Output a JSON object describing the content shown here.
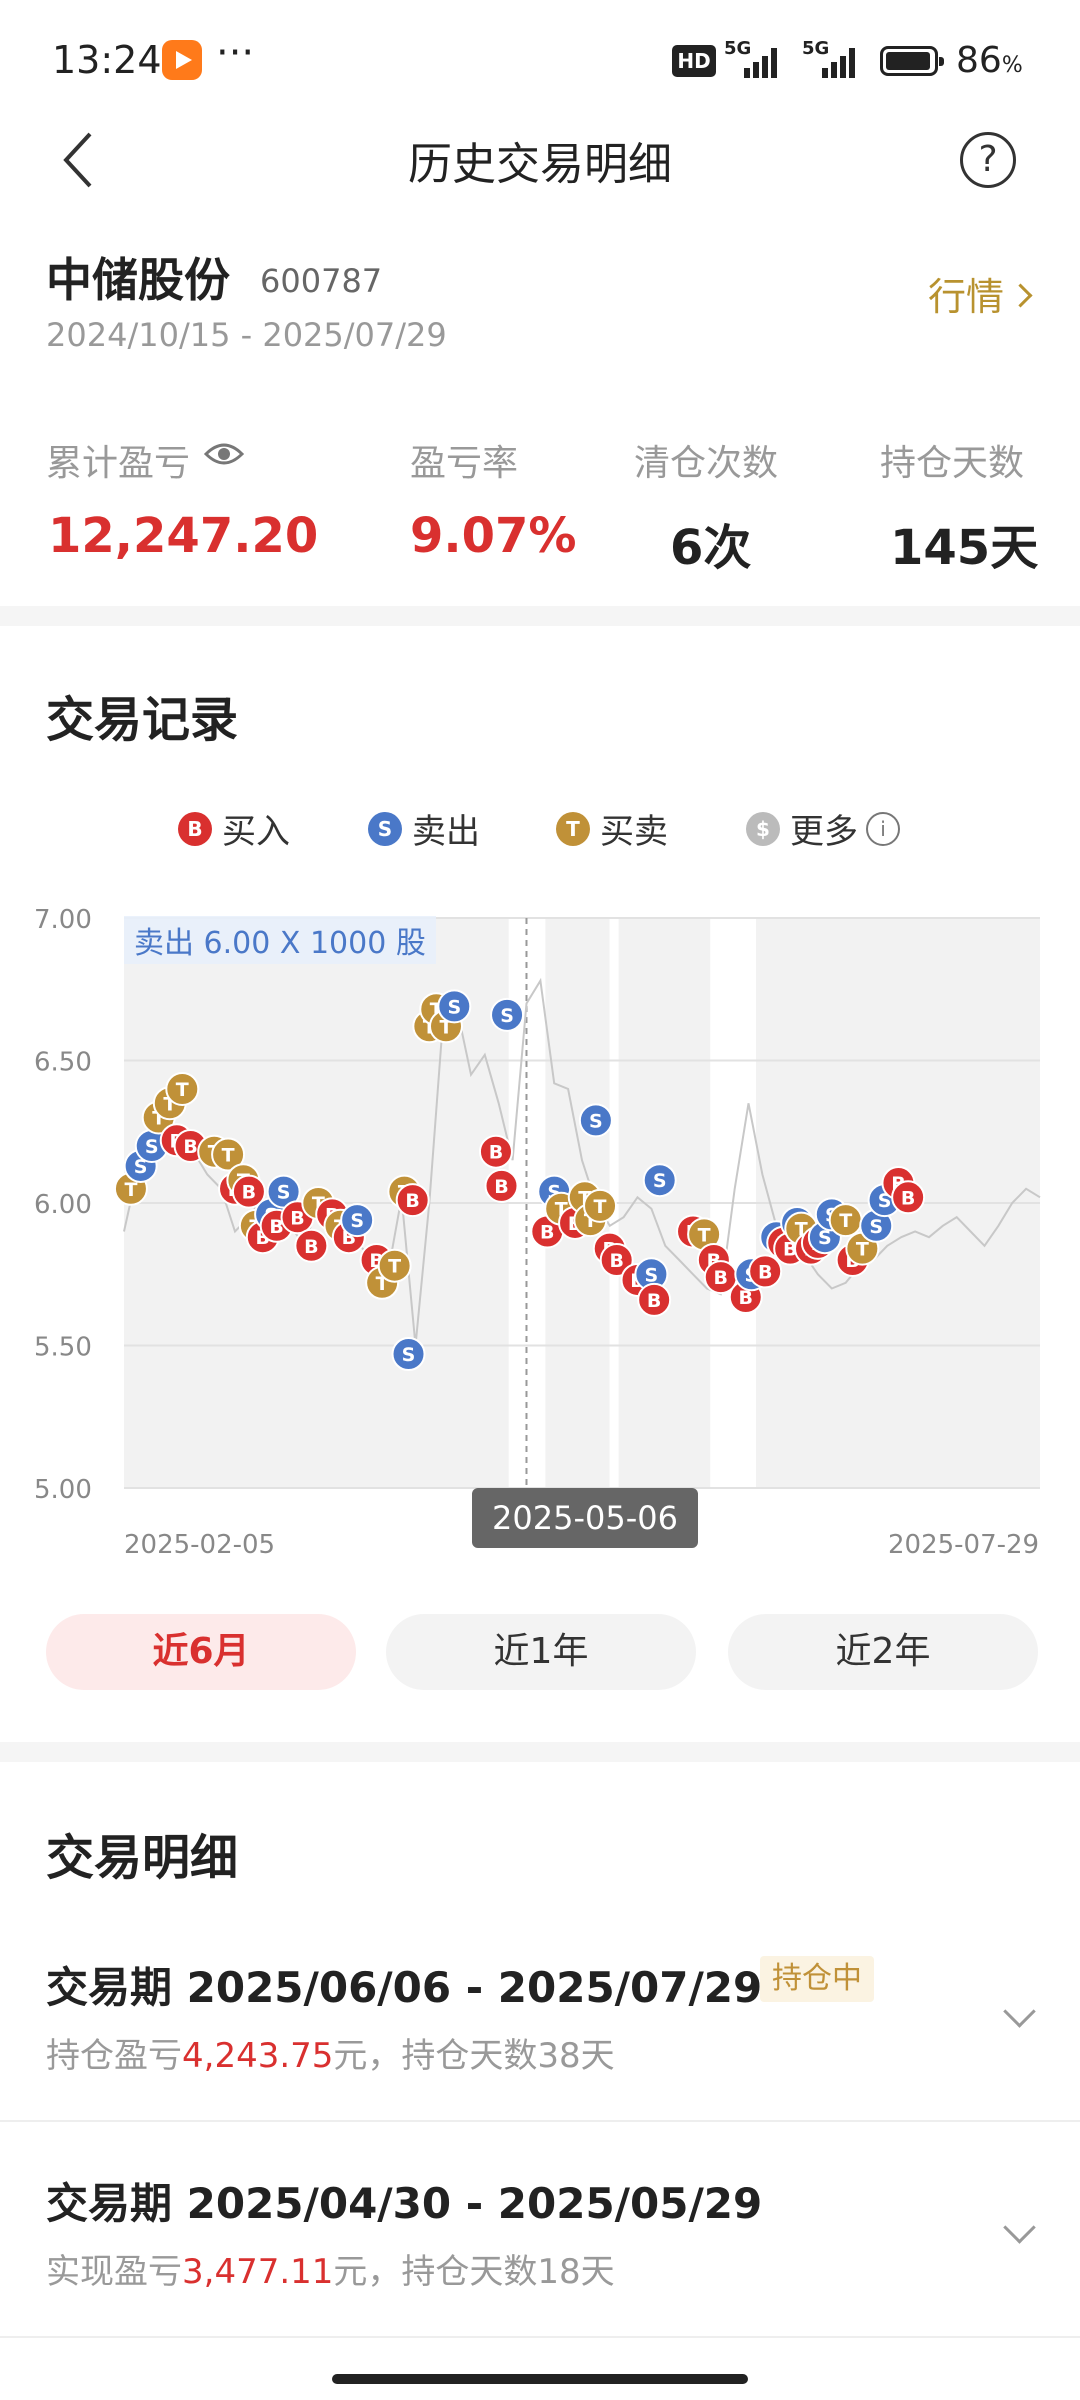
{
  "status_bar": {
    "time": "13:24",
    "more": "···",
    "hd": "HD",
    "signal1": "5G",
    "signal2": "5G",
    "battery": "86",
    "battery_unit": "%"
  },
  "header": {
    "title": "历史交易明细",
    "help": "?"
  },
  "stock": {
    "name": "中储股份",
    "code": "600787",
    "date_range": "2024/10/15 - 2025/07/29",
    "quote_link": "行情"
  },
  "stats": [
    {
      "label": "累计盈亏",
      "value": "12,247.20",
      "color": "#d9302f"
    },
    {
      "label": "盈亏率",
      "value": "9.07%",
      "color": "#d9302f"
    },
    {
      "label": "清仓次数",
      "value": "6次",
      "color": "#222222"
    },
    {
      "label": "持仓天数",
      "value": "145天",
      "color": "#222222"
    }
  ],
  "trade_records": {
    "title": "交易记录",
    "legend": [
      {
        "icon": "B",
        "label": "买入",
        "color": "#d9302f"
      },
      {
        "icon": "S",
        "label": "卖出",
        "color": "#4a78c8"
      },
      {
        "icon": "T",
        "label": "买卖",
        "color": "#c09138"
      },
      {
        "icon": "$",
        "label": "更多",
        "color": "#bbbbbb"
      }
    ],
    "tooltip_trade": "卖出 6.00 X 1000 股",
    "tooltip_date": "2025-05-06",
    "x_start": "2025-02-05",
    "x_end": "2025-07-29"
  },
  "chart_data": {
    "type": "line",
    "ylim": [
      5.0,
      7.0
    ],
    "y_ticks": [
      "7.00",
      "6.50",
      "6.00",
      "5.50",
      "5.00"
    ],
    "x_range": [
      "2025-02-05",
      "2025-07-29"
    ],
    "price": [
      5.9,
      6.12,
      6.3,
      6.35,
      6.2,
      6.18,
      6.1,
      6.05,
      5.9,
      5.95,
      6.02,
      5.9,
      5.92,
      5.85,
      6.0,
      5.95,
      5.92,
      5.85,
      5.8,
      5.75,
      6.02,
      5.5,
      6.0,
      6.65,
      6.68,
      6.45,
      6.52,
      6.35,
      6.15,
      6.7,
      6.78,
      6.42,
      6.4,
      6.15,
      6.0,
      5.92,
      5.95,
      6.02,
      5.98,
      5.85,
      5.8,
      5.75,
      5.7,
      5.68,
      6.05,
      6.35,
      6.1,
      5.92,
      5.88,
      5.82,
      5.75,
      5.7,
      5.72,
      5.78,
      5.8,
      5.85,
      5.88,
      5.9,
      5.88,
      5.92,
      5.95,
      5.9,
      5.85,
      5.92,
      6.0,
      6.05,
      6.02
    ],
    "markers": [
      {
        "t": "T",
        "i": 0.5,
        "v": 6.05
      },
      {
        "t": "S",
        "i": 1.2,
        "v": 6.13
      },
      {
        "t": "S",
        "i": 2.0,
        "v": 6.2
      },
      {
        "t": "T",
        "i": 2.5,
        "v": 6.3
      },
      {
        "t": "T",
        "i": 3.3,
        "v": 6.35
      },
      {
        "t": "T",
        "i": 4.2,
        "v": 6.4
      },
      {
        "t": "B",
        "i": 3.8,
        "v": 6.22
      },
      {
        "t": "B",
        "i": 4.8,
        "v": 6.2
      },
      {
        "t": "T",
        "i": 6.5,
        "v": 6.18
      },
      {
        "t": "T",
        "i": 7.5,
        "v": 6.17
      },
      {
        "t": "B",
        "i": 8.0,
        "v": 6.05
      },
      {
        "t": "T",
        "i": 8.6,
        "v": 6.08
      },
      {
        "t": "B",
        "i": 9.0,
        "v": 6.04
      },
      {
        "t": "T",
        "i": 9.5,
        "v": 5.92
      },
      {
        "t": "B",
        "i": 10.0,
        "v": 5.88
      },
      {
        "t": "S",
        "i": 10.6,
        "v": 5.96
      },
      {
        "t": "B",
        "i": 11.0,
        "v": 5.92
      },
      {
        "t": "S",
        "i": 11.5,
        "v": 6.04
      },
      {
        "t": "B",
        "i": 12.5,
        "v": 5.95
      },
      {
        "t": "B",
        "i": 13.5,
        "v": 5.85
      },
      {
        "t": "T",
        "i": 14.0,
        "v": 6.0
      },
      {
        "t": "B",
        "i": 15.0,
        "v": 5.96
      },
      {
        "t": "T",
        "i": 15.6,
        "v": 5.92
      },
      {
        "t": "B",
        "i": 16.2,
        "v": 5.88
      },
      {
        "t": "S",
        "i": 16.8,
        "v": 5.94
      },
      {
        "t": "B",
        "i": 18.2,
        "v": 5.8
      },
      {
        "t": "T",
        "i": 18.6,
        "v": 5.72
      },
      {
        "t": "T",
        "i": 19.5,
        "v": 5.78
      },
      {
        "t": "T",
        "i": 20.2,
        "v": 6.04
      },
      {
        "t": "B",
        "i": 20.8,
        "v": 6.01
      },
      {
        "t": "S",
        "i": 20.5,
        "v": 5.47
      },
      {
        "t": "T",
        "i": 22.0,
        "v": 6.62
      },
      {
        "t": "T",
        "i": 22.5,
        "v": 6.68
      },
      {
        "t": "T",
        "i": 23.2,
        "v": 6.62
      },
      {
        "t": "S",
        "i": 23.8,
        "v": 6.69
      },
      {
        "t": "B",
        "i": 26.8,
        "v": 6.18
      },
      {
        "t": "B",
        "i": 27.2,
        "v": 6.06
      },
      {
        "t": "S",
        "i": 27.6,
        "v": 6.66
      },
      {
        "t": "B",
        "i": 30.5,
        "v": 5.9
      },
      {
        "t": "S",
        "i": 31.0,
        "v": 6.04
      },
      {
        "t": "T",
        "i": 31.5,
        "v": 5.98
      },
      {
        "t": "B",
        "i": 32.5,
        "v": 5.93
      },
      {
        "t": "T",
        "i": 33.2,
        "v": 6.02
      },
      {
        "t": "T",
        "i": 33.6,
        "v": 5.94
      },
      {
        "t": "T",
        "i": 34.3,
        "v": 5.99
      },
      {
        "t": "S",
        "i": 34.0,
        "v": 6.29
      },
      {
        "t": "B",
        "i": 35.0,
        "v": 5.84
      },
      {
        "t": "B",
        "i": 35.5,
        "v": 5.8
      },
      {
        "t": "B",
        "i": 37.0,
        "v": 5.73
      },
      {
        "t": "S",
        "i": 38.0,
        "v": 5.75
      },
      {
        "t": "B",
        "i": 38.2,
        "v": 5.66
      },
      {
        "t": "S",
        "i": 38.6,
        "v": 6.08
      },
      {
        "t": "B",
        "i": 41.0,
        "v": 5.9
      },
      {
        "t": "T",
        "i": 41.8,
        "v": 5.89
      },
      {
        "t": "B",
        "i": 42.5,
        "v": 5.8
      },
      {
        "t": "B",
        "i": 43.0,
        "v": 5.74
      },
      {
        "t": "B",
        "i": 44.8,
        "v": 5.67
      },
      {
        "t": "S",
        "i": 45.2,
        "v": 5.75
      },
      {
        "t": "B",
        "i": 46.2,
        "v": 5.76
      },
      {
        "t": "S",
        "i": 47.0,
        "v": 5.88
      },
      {
        "t": "B",
        "i": 47.5,
        "v": 5.86
      },
      {
        "t": "B",
        "i": 48.0,
        "v": 5.84
      },
      {
        "t": "S",
        "i": 48.5,
        "v": 5.93
      },
      {
        "t": "T",
        "i": 48.8,
        "v": 5.91
      },
      {
        "t": "B",
        "i": 49.5,
        "v": 5.84
      },
      {
        "t": "B",
        "i": 50.0,
        "v": 5.86
      },
      {
        "t": "S",
        "i": 50.5,
        "v": 5.88
      },
      {
        "t": "S",
        "i": 51.0,
        "v": 5.96
      },
      {
        "t": "T",
        "i": 52.0,
        "v": 5.94
      },
      {
        "t": "B",
        "i": 52.5,
        "v": 5.8
      },
      {
        "t": "T",
        "i": 53.2,
        "v": 5.84
      },
      {
        "t": "S",
        "i": 54.2,
        "v": 5.92
      },
      {
        "t": "S",
        "i": 54.8,
        "v": 6.01
      },
      {
        "t": "B",
        "i": 55.8,
        "v": 6.07
      },
      {
        "t": "B",
        "i": 56.5,
        "v": 6.02
      }
    ]
  },
  "period_tabs": [
    {
      "label": "近6月",
      "active": true
    },
    {
      "label": "近1年",
      "active": false
    },
    {
      "label": "近2年",
      "active": false
    }
  ],
  "trade_details": {
    "title": "交易明细",
    "items": [
      {
        "title": "交易期 2025/06/06 - 2025/07/29",
        "tag": "持仓中",
        "sub_prefix": "持仓盈亏",
        "amount": "4,243.75",
        "sub_suffix": "元，持仓天数38天"
      },
      {
        "title": "交易期 2025/04/30 - 2025/05/29",
        "tag": "",
        "sub_prefix": "实现盈亏",
        "amount": "3,477.11",
        "sub_suffix": "元，持仓天数18天"
      }
    ]
  }
}
